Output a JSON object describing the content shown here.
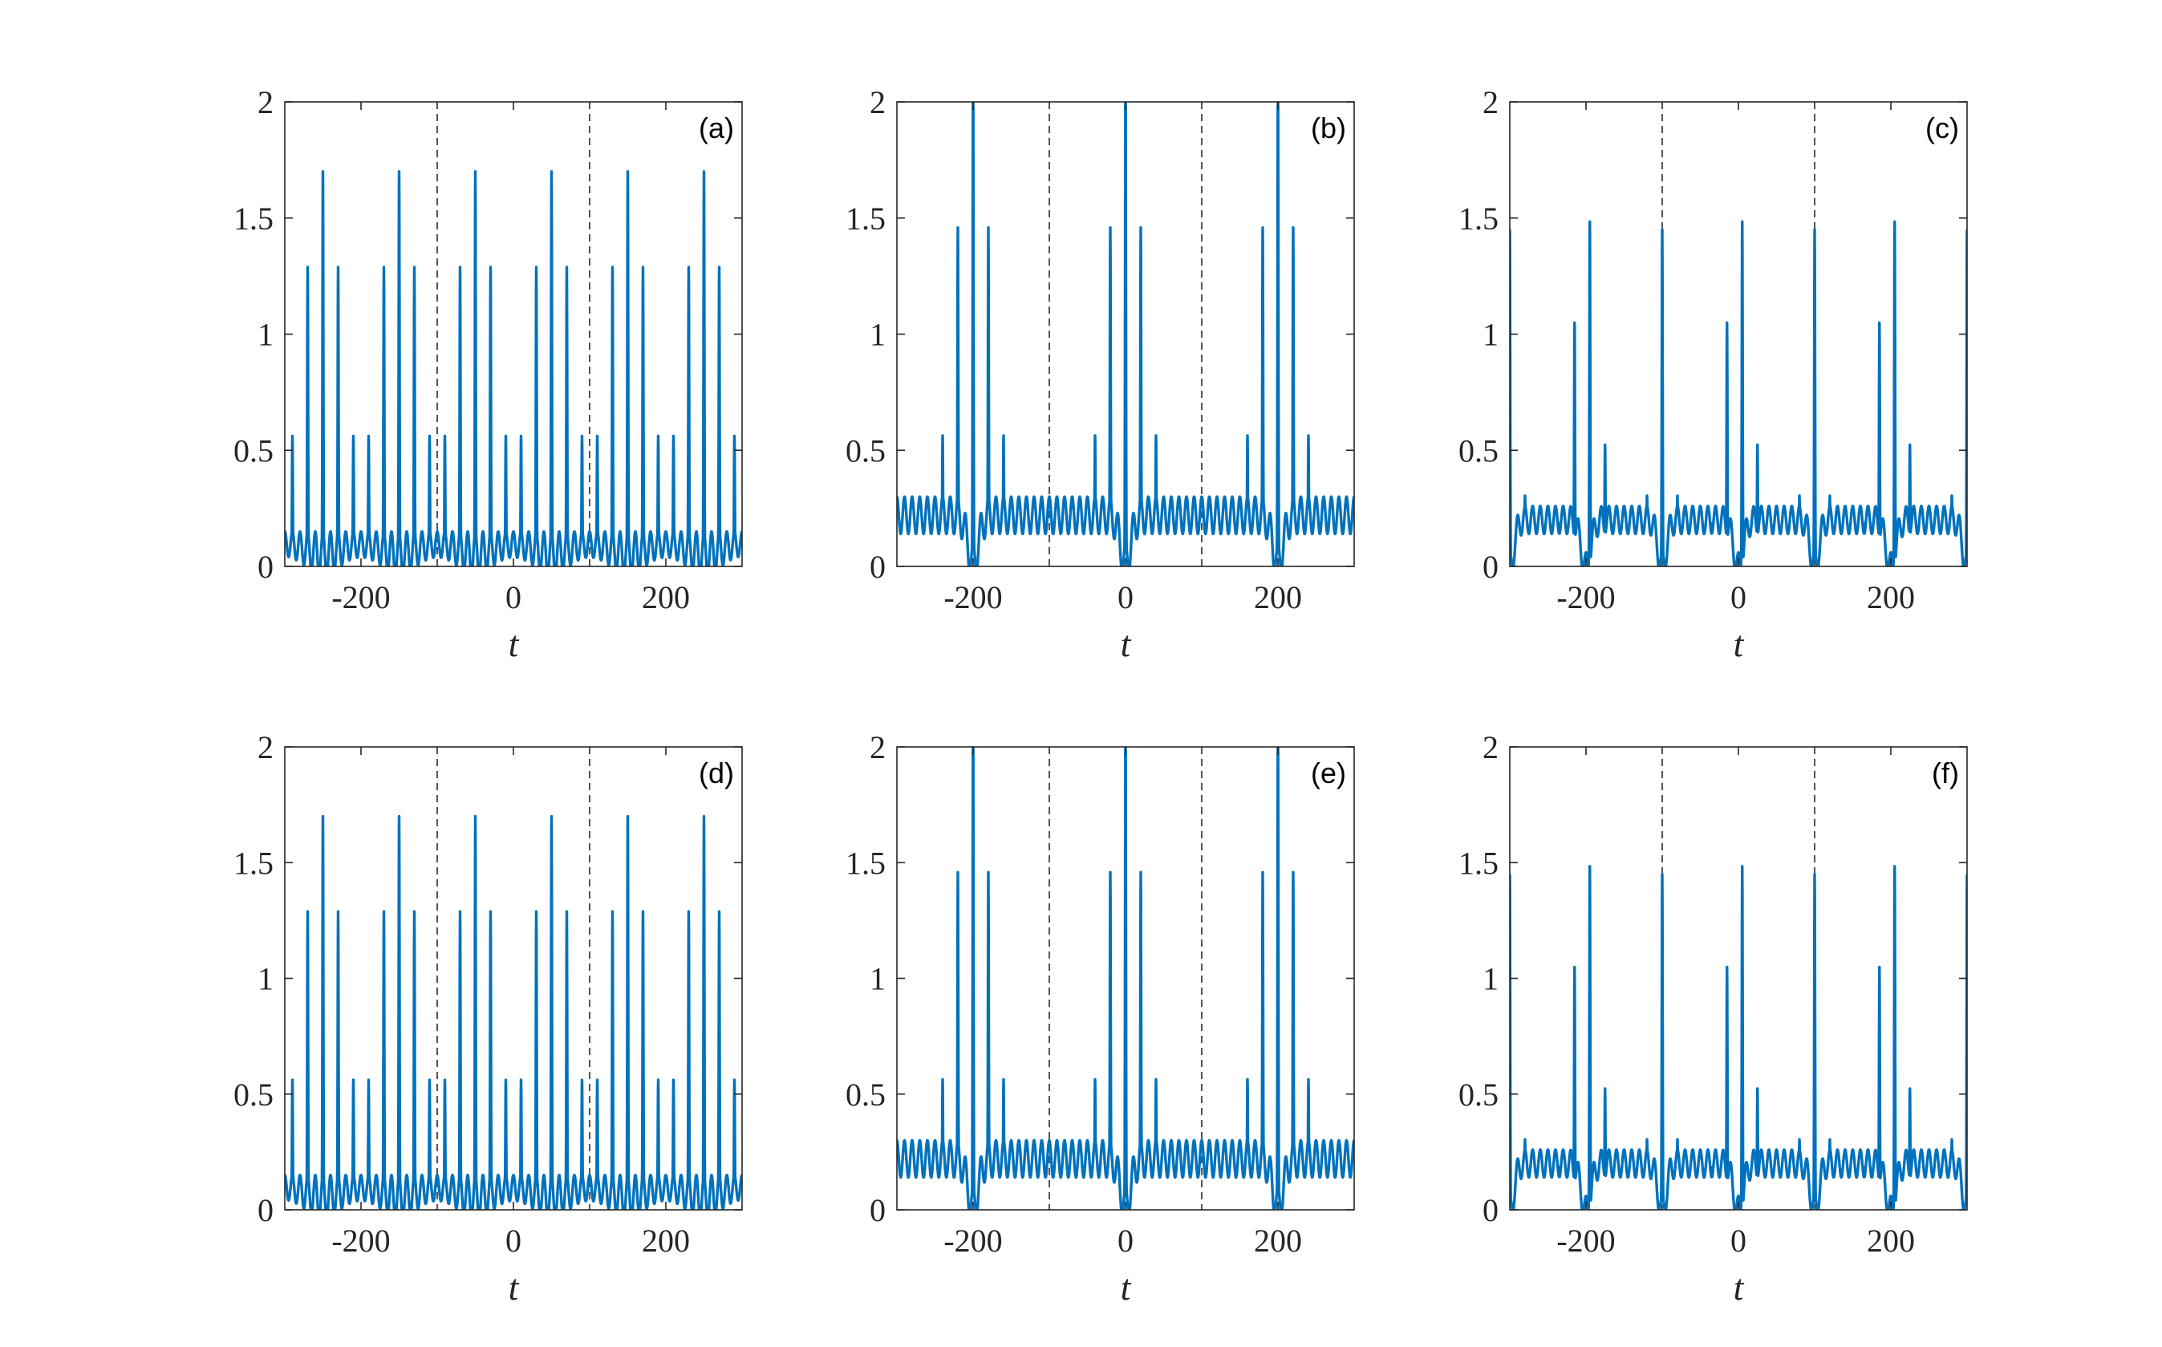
{
  "figure": {
    "series_color": "#0072BD",
    "vline_color": "#555555"
  },
  "chart_data": [
    {
      "type": "line",
      "panel_label": "(a)",
      "xlabel": "t",
      "xlim": [
        -300,
        300
      ],
      "ylim": [
        0,
        2
      ],
      "xticks": [
        -200,
        0,
        200
      ],
      "yticks": [
        0,
        0.5,
        1,
        1.5,
        2
      ],
      "xtick_labels": [
        "-200",
        "0",
        "200"
      ],
      "ytick_labels": [
        "0",
        "0.5",
        "1",
        "1.5",
        "2"
      ],
      "vlines": [
        -100,
        100
      ],
      "pulse": {
        "period": 200,
        "center": -50,
        "peak_offset": 0,
        "spacing": 10,
        "peak_max": 1.7,
        "spike_base": 0.1,
        "spike_decay": 1.2
      },
      "secondary_pulse_centers": [
        -250,
        -150,
        -50,
        50,
        150,
        250
      ],
      "baseline": {
        "level": 0.1,
        "ripple": 0.05,
        "dip": 0.0
      }
    },
    {
      "type": "line",
      "panel_label": "(b)",
      "xlabel": "t",
      "xlim": [
        -300,
        300
      ],
      "ylim": [
        0,
        2
      ],
      "xticks": [
        -200,
        0,
        200
      ],
      "yticks": [
        0,
        0.5,
        1,
        1.5,
        2
      ],
      "xtick_labels": [
        "-200",
        "0",
        "200"
      ],
      "ytick_labels": [
        "0",
        "0.5",
        "1",
        "1.5",
        "2"
      ],
      "vlines": [
        -100,
        100
      ],
      "pulse": {
        "period": 200,
        "center": 0,
        "spacing": 10,
        "peak_max": 1.85,
        "spike_base": 0.3,
        "spike_decay": 0.9
      },
      "peak_centers": [
        -200,
        0,
        200
      ],
      "baseline": {
        "level": 0.22,
        "ripple": 0.08,
        "dip": 0.0
      }
    },
    {
      "type": "line",
      "panel_label": "(c)",
      "xlabel": "t",
      "xlim": [
        -300,
        300
      ],
      "ylim": [
        0,
        2
      ],
      "xticks": [
        -200,
        0,
        200
      ],
      "yticks": [
        0,
        0.5,
        1,
        1.5,
        2
      ],
      "xtick_labels": [
        "-200",
        "0",
        "200"
      ],
      "ytick_labels": [
        "0",
        "0.5",
        "1",
        "1.5",
        "2"
      ],
      "vlines": [
        -100,
        100
      ],
      "pulse": {
        "period": 200,
        "center": 0,
        "spacing": 10,
        "peak_max": 1.55,
        "spike_base": 0.35,
        "spike_decay": 1.0
      },
      "peak_centers": [
        -200,
        -100,
        0,
        100,
        200
      ],
      "edge_peaks": [
        -300,
        -100,
        100,
        300
      ],
      "baseline": {
        "level": 0.2,
        "ripple": 0.06,
        "dip": 0.0
      }
    },
    {
      "type": "line",
      "panel_label": "(d)",
      "xlabel": "t",
      "xlim": [
        -300,
        300
      ],
      "ylim": [
        0,
        2
      ],
      "xticks": [
        -200,
        0,
        200
      ],
      "yticks": [
        0,
        0.5,
        1,
        1.5,
        2
      ],
      "xtick_labels": [
        "-200",
        "0",
        "200"
      ],
      "ytick_labels": [
        "0",
        "0.5",
        "1",
        "1.5",
        "2"
      ],
      "vlines": [
        -100,
        100
      ],
      "pulse": {
        "period": 200,
        "center": -50,
        "peak_offset": 0,
        "spacing": 10,
        "peak_max": 1.7,
        "spike_base": 0.1,
        "spike_decay": 1.2
      },
      "secondary_pulse_centers": [
        -250,
        -150,
        -50,
        50,
        150,
        250
      ],
      "baseline": {
        "level": 0.1,
        "ripple": 0.05,
        "dip": 0.0
      }
    },
    {
      "type": "line",
      "panel_label": "(e)",
      "xlabel": "t",
      "xlim": [
        -300,
        300
      ],
      "ylim": [
        0,
        2
      ],
      "xticks": [
        -200,
        0,
        200
      ],
      "yticks": [
        0,
        0.5,
        1,
        1.5,
        2
      ],
      "xtick_labels": [
        "-200",
        "0",
        "200"
      ],
      "ytick_labels": [
        "0",
        "0.5",
        "1",
        "1.5",
        "2"
      ],
      "vlines": [
        -100,
        100
      ],
      "pulse": {
        "period": 200,
        "center": 0,
        "spacing": 10,
        "peak_max": 1.85,
        "spike_base": 0.3,
        "spike_decay": 0.9
      },
      "peak_centers": [
        -200,
        0,
        200
      ],
      "baseline": {
        "level": 0.22,
        "ripple": 0.08,
        "dip": 0.0
      }
    },
    {
      "type": "line",
      "panel_label": "(f)",
      "xlabel": "t",
      "xlim": [
        -300,
        300
      ],
      "ylim": [
        0,
        2
      ],
      "xticks": [
        -200,
        0,
        200
      ],
      "yticks": [
        0,
        0.5,
        1,
        1.5,
        2
      ],
      "xtick_labels": [
        "-200",
        "0",
        "200"
      ],
      "ytick_labels": [
        "0",
        "0.5",
        "1",
        "1.5",
        "2"
      ],
      "vlines": [
        -100,
        100
      ],
      "pulse": {
        "period": 200,
        "center": 0,
        "spacing": 10,
        "peak_max": 1.55,
        "spike_base": 0.35,
        "spike_decay": 1.0
      },
      "peak_centers": [
        -200,
        -100,
        0,
        100,
        200
      ],
      "edge_peaks": [
        -300,
        -100,
        100,
        300
      ],
      "baseline": {
        "level": 0.2,
        "ripple": 0.06,
        "dip": 0.0
      }
    }
  ]
}
